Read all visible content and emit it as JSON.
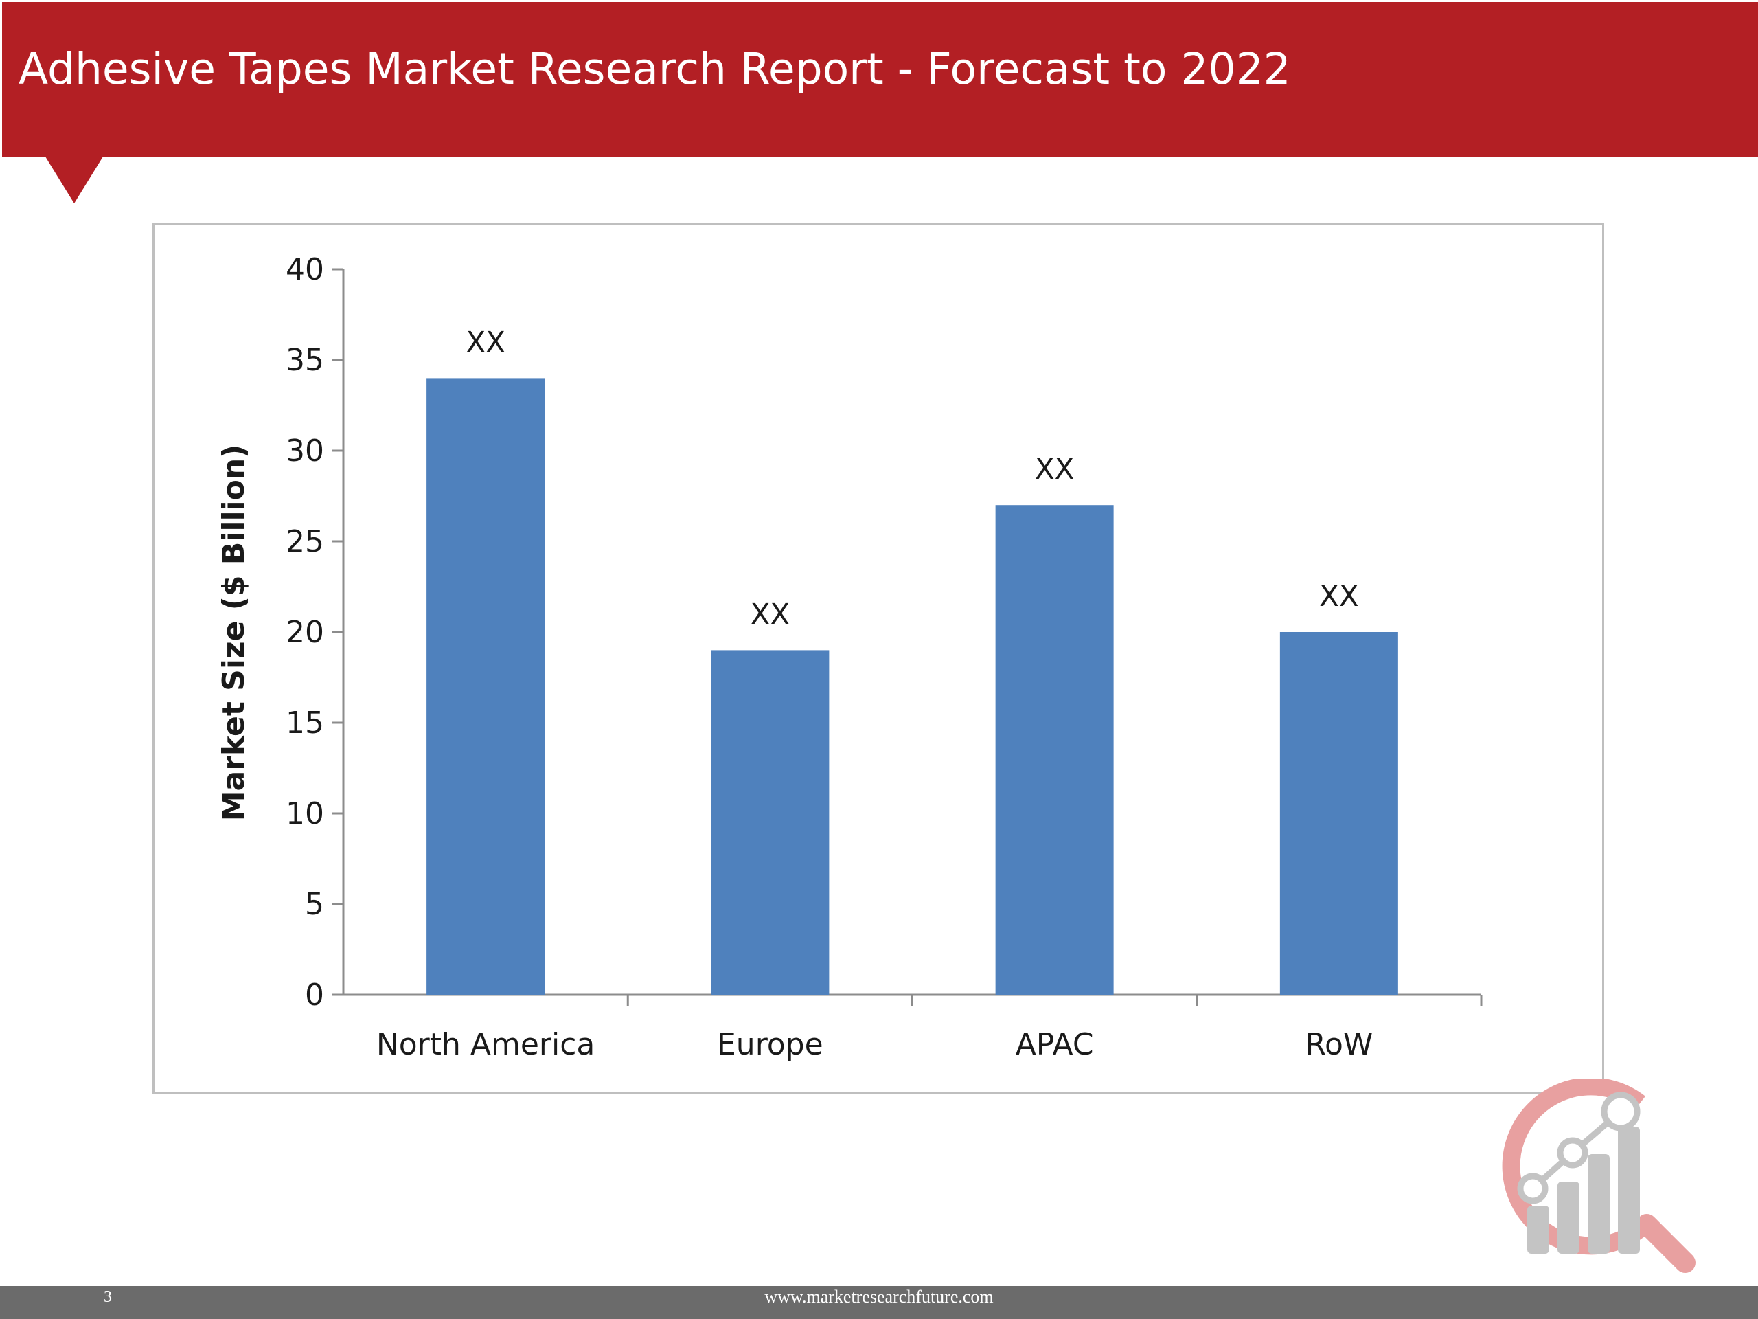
{
  "slide": {
    "title": "Adhesive Tapes Market Research Report - Forecast to 2022",
    "page_number": "3",
    "footer_url": "www.marketresearchfuture.com"
  },
  "colors": {
    "header": "#b31f24",
    "bar": "#4f81bd",
    "footer": "#6b6b6b"
  },
  "chart_data": {
    "type": "bar",
    "categories": [
      "North America",
      "Europe",
      "APAC",
      "RoW"
    ],
    "values": [
      34,
      19,
      27,
      20
    ],
    "data_labels": [
      "XX",
      "XX",
      "XX",
      "XX"
    ],
    "ylabel": "Market Size ($ Billion)",
    "xlabel": "",
    "ylim": [
      0,
      40
    ],
    "yticks": [
      0,
      5,
      10,
      15,
      20,
      25,
      30,
      35,
      40
    ],
    "grid": false,
    "legend": "none"
  },
  "logo": {
    "name": "marketresearchfuture-logo"
  }
}
